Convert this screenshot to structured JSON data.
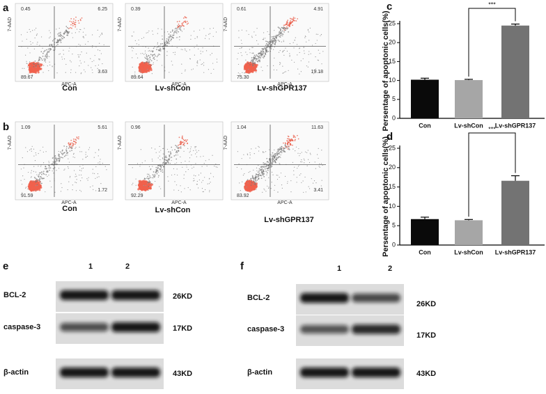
{
  "panels": {
    "letters": [
      "a",
      "b",
      "c",
      "d",
      "e",
      "f"
    ],
    "flow": {
      "y_axis_label": "7-AAD",
      "x_axis_label": "APC-A",
      "rows": [
        [
          {
            "label": "Con",
            "ul": "0.45",
            "ur": "6.25",
            "ll": "89.67",
            "lr": "3.63"
          },
          {
            "label": "Lv-shCon",
            "ul": "0.39",
            "ll": "89.64"
          },
          {
            "label": "Lv-shGPR137",
            "ul": "0.61",
            "ur": "4.91",
            "ll": "75.30",
            "lr": "19.18"
          }
        ],
        [
          {
            "label": "Con",
            "ul": "1.09",
            "ur": "5.61",
            "ll": "91.59",
            "lr": "1.72"
          },
          {
            "label": "Lv-shCon",
            "ul": "0.96",
            "ll": "92.29"
          },
          {
            "label": "Lv-shGPR137",
            "ul": "1.04",
            "ur": "11.63",
            "ll": "83.92",
            "lr": "3.41"
          }
        ]
      ]
    },
    "blots": [
      {
        "lanes": [
          "1",
          "2"
        ],
        "rows": [
          {
            "name": "BCL-2",
            "size": "26KD"
          },
          {
            "name": "caspase-3",
            "size": "17KD"
          },
          {
            "name": "β-actin",
            "size": "43KD"
          }
        ]
      },
      {
        "lanes": [
          "1",
          "2"
        ],
        "rows": [
          {
            "name": "BCL-2",
            "size": "26KD"
          },
          {
            "name": "caspase-3",
            "size": "17KD"
          },
          {
            "name": "β-actin",
            "size": "43KD"
          }
        ]
      }
    ]
  },
  "chart_data": [
    {
      "type": "bar",
      "ylabel": "Persentage of apoptonic cells(%)",
      "categories": [
        "Con",
        "Lv-shCon",
        "Lv-shGPR137"
      ],
      "values": [
        10.2,
        10.1,
        24.5
      ],
      "errors": [
        0.4,
        0.2,
        0.4
      ],
      "colors": [
        "#0a0a0a",
        "#a6a6a6",
        "#737373"
      ],
      "ylim": [
        0,
        25
      ],
      "yticks": [
        0,
        5,
        10,
        15,
        20,
        25
      ],
      "annotation": "***"
    },
    {
      "type": "bar",
      "ylabel": "Persentage of apoptonic cells(%)",
      "categories": [
        "Con",
        "Lv-shCon",
        "Lv-shGPR137"
      ],
      "values": [
        6.7,
        6.4,
        16.6
      ],
      "errors": [
        0.5,
        0.2,
        1.3
      ],
      "colors": [
        "#0a0a0a",
        "#a6a6a6",
        "#737373"
      ],
      "ylim": [
        0,
        25
      ],
      "yticks": [
        0,
        5,
        10,
        15,
        20,
        25
      ],
      "annotation": "***"
    }
  ]
}
